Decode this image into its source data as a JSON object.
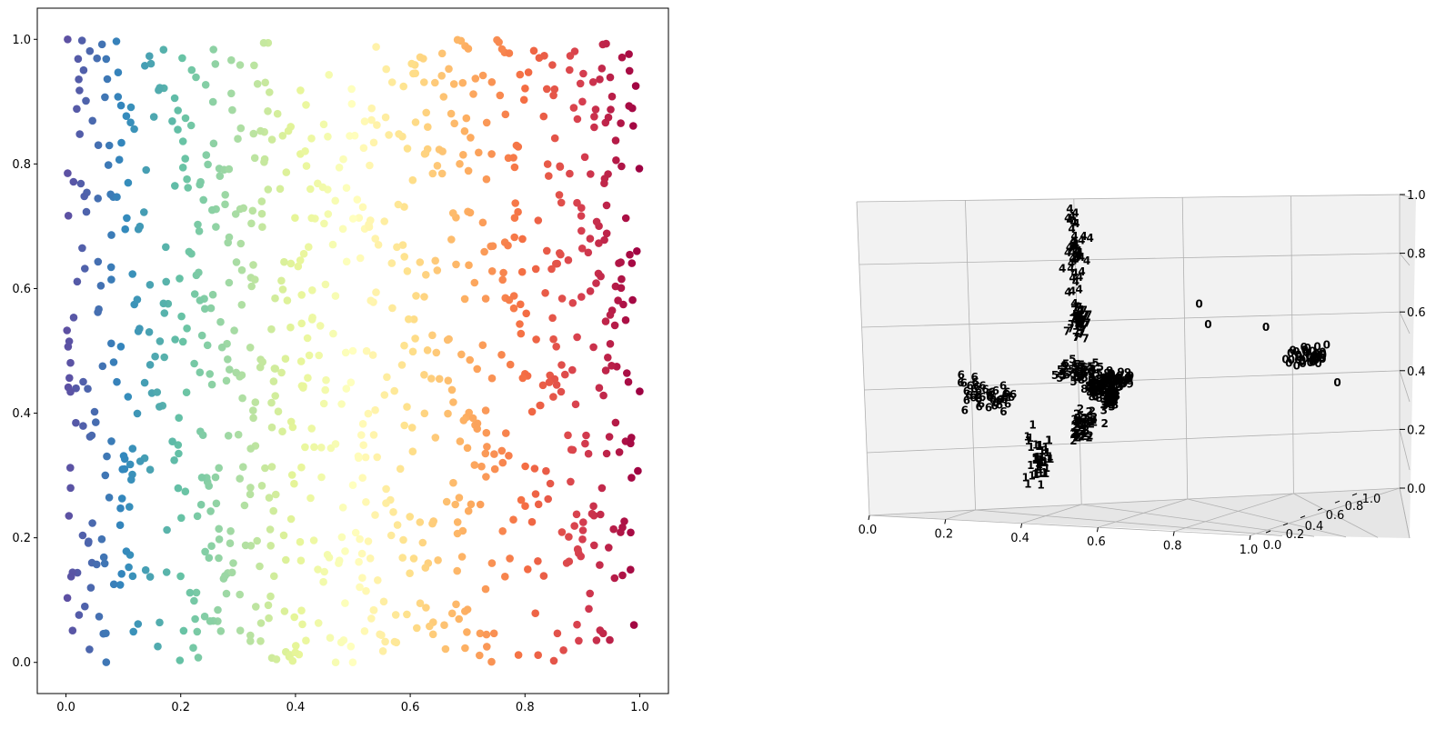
{
  "chart_data": [
    {
      "type": "scatter",
      "xlim": [
        -0.05,
        1.05
      ],
      "ylim": [
        -0.05,
        1.05
      ],
      "xticks": [
        "0.0",
        "0.2",
        "0.4",
        "0.6",
        "0.8",
        "1.0"
      ],
      "yticks": [
        "0.0",
        "0.2",
        "0.4",
        "0.6",
        "0.8",
        "1.0"
      ],
      "xtick_values": [
        0,
        0.2,
        0.4,
        0.6,
        0.8,
        1.0
      ],
      "ytick_values": [
        0,
        0.2,
        0.4,
        0.6,
        0.8,
        1.0
      ],
      "colormap": "Spectral (colored by x)",
      "n_points": 1000,
      "sample_points": [
        [
          0.003,
          1.0
        ],
        [
          0.028,
          0.998
        ],
        [
          0.008,
          0.28
        ],
        [
          0.47,
          0.0
        ],
        [
          0.99,
          0.06
        ],
        [
          0.995,
          0.66
        ],
        [
          0.5,
          0.5
        ],
        [
          0.9,
          0.9
        ]
      ],
      "grid": false,
      "legend": "none"
    },
    {
      "type": "scatter",
      "projection": "3d",
      "xlim": [
        0,
        1
      ],
      "ylim": [
        0,
        1
      ],
      "zlim": [
        0,
        1
      ],
      "xticks": [
        "0.0",
        "0.2",
        "0.4",
        "0.6",
        "0.8",
        "1.0"
      ],
      "yticks": [
        "0.0",
        "0.2",
        "0.4",
        "0.6",
        "0.8",
        "1.0"
      ],
      "zticks": [
        "0.0",
        "0.2",
        "0.4",
        "0.6",
        "0.8",
        "1.0"
      ],
      "marker": "digit labels 0-9",
      "grid": true,
      "legend": "none",
      "clusters": [
        {
          "label": "0",
          "color": "#e41a1c",
          "center": [
            0.98,
            0.5,
            0.45
          ],
          "outliers": [
            [
              0.74,
              0.5,
              0.63
            ],
            [
              0.76,
              0.5,
              0.56
            ],
            [
              0.89,
              0.5,
              0.55
            ],
            [
              1.05,
              0.5,
              0.36
            ]
          ]
        },
        {
          "label": "1",
          "color": "#e41a1c",
          "center": [
            0.38,
            0.5,
            0.11
          ]
        },
        {
          "label": "2",
          "color": "#377eb8",
          "center": [
            0.48,
            0.5,
            0.22
          ]
        },
        {
          "label": "3",
          "color": "#4daf4a",
          "center": [
            0.54,
            0.5,
            0.31
          ]
        },
        {
          "label": "4",
          "color": "#984ea3",
          "center": [
            0.46,
            0.5,
            0.78
          ]
        },
        {
          "label": "5",
          "color": "#ff7f00",
          "center": [
            0.47,
            0.5,
            0.4
          ]
        },
        {
          "label": "6",
          "color": "#ffff33",
          "center": [
            0.26,
            0.5,
            0.31
          ]
        },
        {
          "label": "7",
          "color": "#a65628",
          "center": [
            0.47,
            0.5,
            0.57
          ]
        },
        {
          "label": "8",
          "color": "#f781bf",
          "center": [
            0.51,
            0.5,
            0.34
          ]
        },
        {
          "label": "9",
          "color": "#999999",
          "center": [
            0.55,
            0.5,
            0.37
          ]
        }
      ]
    }
  ]
}
